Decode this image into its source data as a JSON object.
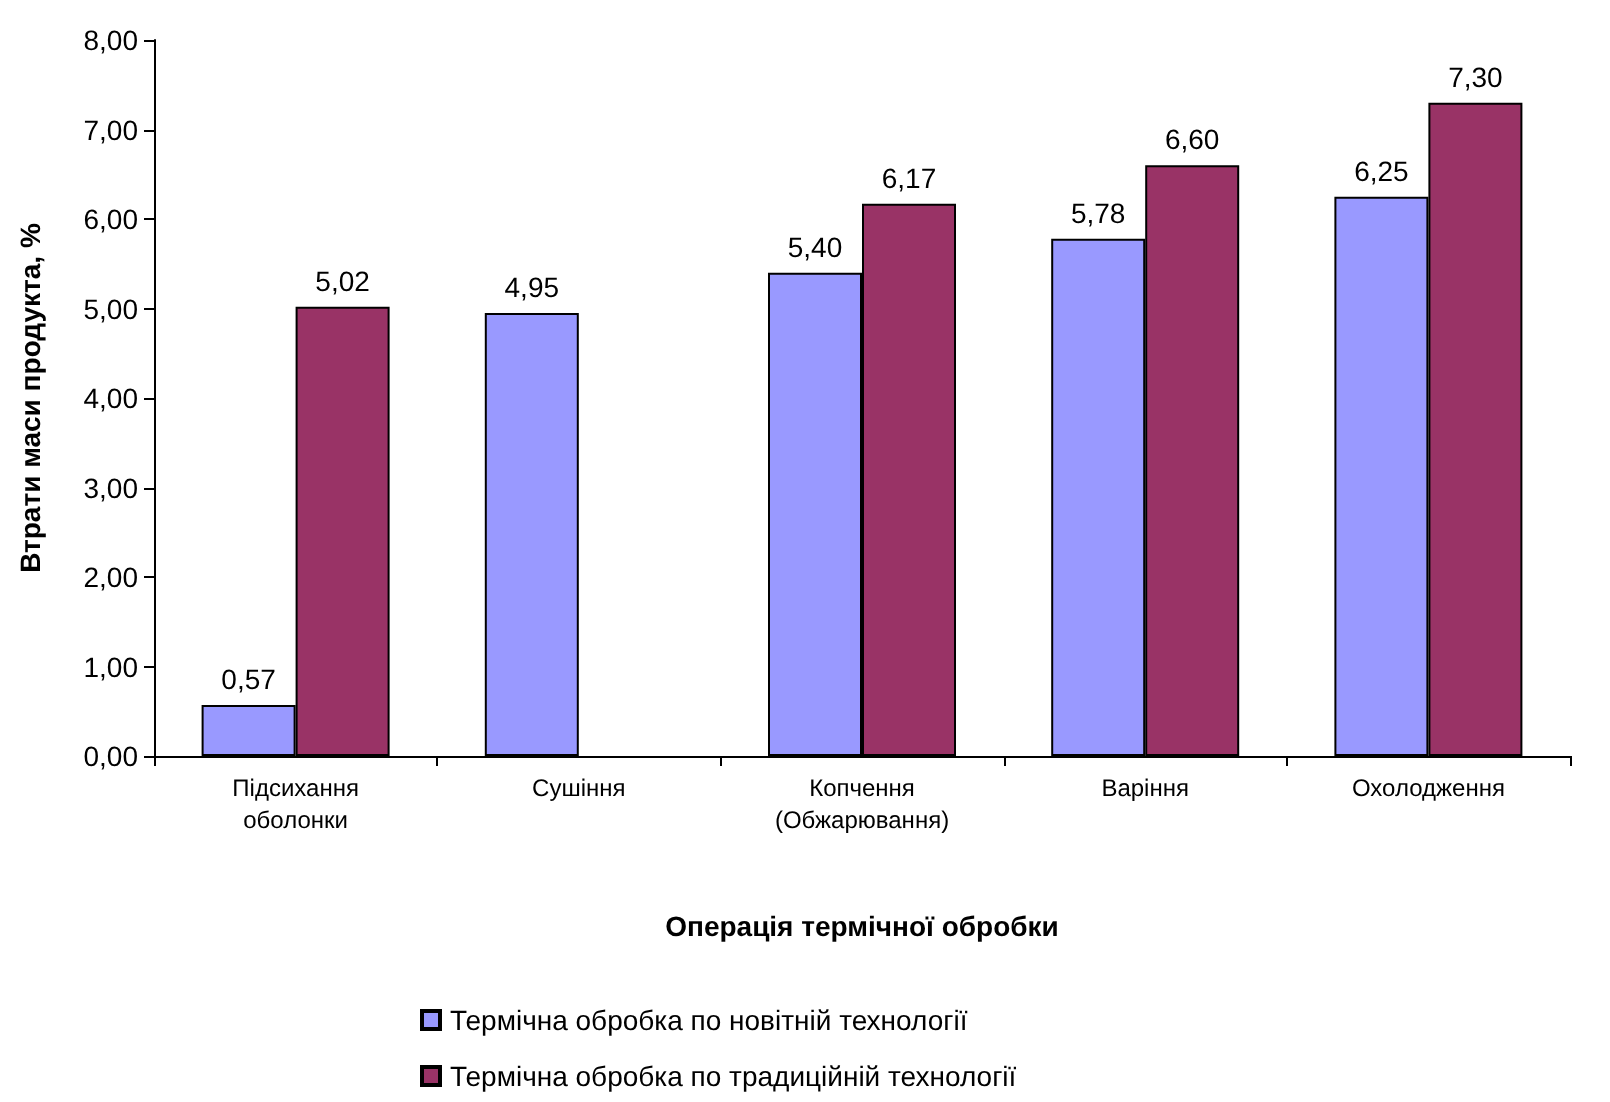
{
  "chart_data": {
    "type": "bar",
    "xlabel": "Операція термічної обробки",
    "ylabel": "Втрати маси продукта, %",
    "categories": [
      "Підсихання\nоболонки",
      "Сушіння",
      "Копчення\n(Обжарювання)",
      "Варіння",
      "Охолодження"
    ],
    "series": [
      {
        "name": "Термічна обробка по новітній технології",
        "color": "#9999ff",
        "values": [
          0.57,
          4.95,
          5.4,
          5.78,
          6.25
        ],
        "value_labels": [
          "0,57",
          "4,95",
          "5,40",
          "5,78",
          "6,25"
        ]
      },
      {
        "name": "Термічна обробка по традиційній технології",
        "color": "#993366",
        "values": [
          5.02,
          null,
          6.17,
          6.6,
          7.3
        ],
        "value_labels": [
          "5,02",
          null,
          "6,17",
          "6,60",
          "7,30"
        ]
      }
    ],
    "ylim": [
      0,
      8
    ],
    "yticks": [
      {
        "value": 0,
        "label": "0,00"
      },
      {
        "value": 1,
        "label": "1,00"
      },
      {
        "value": 2,
        "label": "2,00"
      },
      {
        "value": 3,
        "label": "3,00"
      },
      {
        "value": 4,
        "label": "4,00"
      },
      {
        "value": 5,
        "label": "5,00"
      },
      {
        "value": 6,
        "label": "6,00"
      },
      {
        "value": 7,
        "label": "7,00"
      },
      {
        "value": 8,
        "label": "8,00"
      }
    ],
    "grid": false,
    "legend": "bottom"
  }
}
